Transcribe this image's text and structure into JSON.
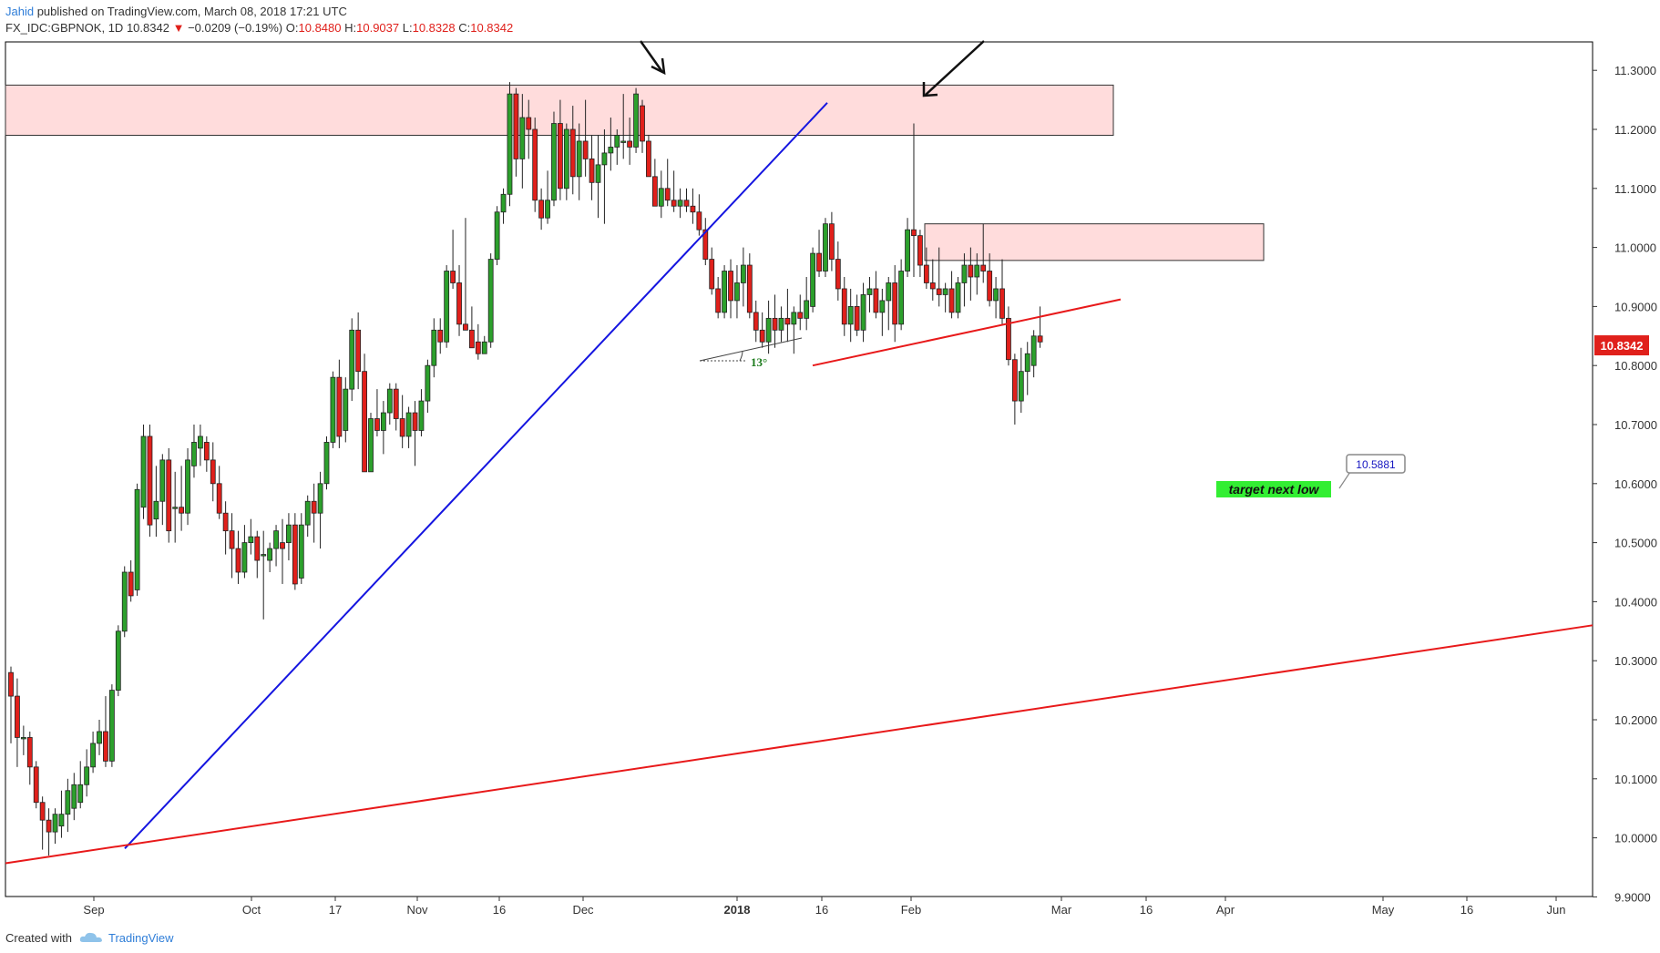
{
  "header": {
    "author": "Jahid",
    "published_text": "published on TradingView.com, March 08, 2018 17:21 UTC",
    "symbol": "FX_IDC:GBPNOK, 1D",
    "last": "10.8342",
    "change": "−0.0209 (−0.19%)",
    "o_label": "O:",
    "o_val": "10.8480",
    "h_label": "H:",
    "h_val": "10.9037",
    "l_label": "L:",
    "l_val": "10.8328",
    "c_label": "C:",
    "c_val": "10.8342"
  },
  "footer": {
    "created_with": "Created with",
    "brand": "TradingView"
  },
  "colors": {
    "up": "#2ca02c",
    "down": "#e0201b",
    "zone_fill": "#ffdcdc",
    "blue_trend": "#1515e0",
    "red_trend": "#e8191a",
    "target_bg": "#33ee33"
  },
  "annotations": {
    "angle_label": "13°",
    "target_text": "target next low",
    "target_price": "10.5881",
    "last_price_tag": "10.8342"
  },
  "chart_data": {
    "type": "candlestick",
    "symbol": "GBPNOK",
    "interval": "1D",
    "ylim": [
      9.9,
      11.33
    ],
    "y_ticks": [
      "11.3000",
      "11.2000",
      "11.1000",
      "11.0000",
      "10.9000",
      "10.8000",
      "10.7000",
      "10.6000",
      "10.5000",
      "10.4000",
      "10.3000",
      "10.2000",
      "10.1000",
      "10.0000",
      "9.9000"
    ],
    "x_ticks": [
      "Sep",
      "Oct",
      "17",
      "Nov",
      "16",
      "Dec",
      "2018",
      "16",
      "Feb",
      "Mar",
      "16",
      "Apr",
      "May",
      "16",
      "Jun"
    ],
    "candles": [
      [
        10.28,
        10.29,
        10.16,
        10.24
      ],
      [
        10.24,
        10.27,
        10.12,
        10.17
      ],
      [
        10.17,
        10.19,
        10.14,
        10.17
      ],
      [
        10.17,
        10.18,
        10.09,
        10.12
      ],
      [
        10.12,
        10.13,
        10.05,
        10.06
      ],
      [
        10.06,
        10.07,
        9.98,
        10.03
      ],
      [
        10.03,
        10.05,
        9.97,
        10.01
      ],
      [
        10.01,
        10.05,
        9.99,
        10.04
      ],
      [
        10.02,
        10.08,
        10.0,
        10.04
      ],
      [
        10.04,
        10.1,
        10.01,
        10.08
      ],
      [
        10.05,
        10.11,
        10.03,
        10.09
      ],
      [
        10.06,
        10.13,
        10.05,
        10.09
      ],
      [
        10.09,
        10.15,
        10.07,
        10.12
      ],
      [
        10.12,
        10.18,
        10.11,
        10.16
      ],
      [
        10.16,
        10.2,
        10.14,
        10.18
      ],
      [
        10.18,
        10.24,
        10.12,
        10.13
      ],
      [
        10.13,
        10.26,
        10.12,
        10.25
      ],
      [
        10.25,
        10.36,
        10.24,
        10.35
      ],
      [
        10.35,
        10.46,
        10.34,
        10.45
      ],
      [
        10.45,
        10.47,
        10.4,
        10.41
      ],
      [
        10.42,
        10.6,
        10.41,
        10.59
      ],
      [
        10.56,
        10.7,
        10.54,
        10.68
      ],
      [
        10.68,
        10.7,
        10.51,
        10.53
      ],
      [
        10.54,
        10.63,
        10.51,
        10.57
      ],
      [
        10.57,
        10.65,
        10.53,
        10.64
      ],
      [
        10.64,
        10.66,
        10.5,
        10.52
      ],
      [
        10.56,
        10.62,
        10.5,
        10.56
      ],
      [
        10.56,
        10.63,
        10.52,
        10.55
      ],
      [
        10.55,
        10.66,
        10.53,
        10.64
      ],
      [
        10.63,
        10.7,
        10.61,
        10.67
      ],
      [
        10.66,
        10.7,
        10.63,
        10.68
      ],
      [
        10.67,
        10.68,
        10.62,
        10.64
      ],
      [
        10.64,
        10.67,
        10.57,
        10.6
      ],
      [
        10.6,
        10.63,
        10.54,
        10.55
      ],
      [
        10.55,
        10.57,
        10.48,
        10.52
      ],
      [
        10.52,
        10.55,
        10.44,
        10.49
      ],
      [
        10.49,
        10.52,
        10.43,
        10.45
      ],
      [
        10.45,
        10.53,
        10.44,
        10.5
      ],
      [
        10.5,
        10.54,
        10.48,
        10.51
      ],
      [
        10.51,
        10.52,
        10.44,
        10.47
      ],
      [
        10.48,
        10.52,
        10.37,
        10.48
      ],
      [
        10.47,
        10.5,
        10.45,
        10.49
      ],
      [
        10.49,
        10.53,
        10.46,
        10.52
      ],
      [
        10.5,
        10.54,
        10.43,
        10.49
      ],
      [
        10.5,
        10.55,
        10.47,
        10.53
      ],
      [
        10.53,
        10.55,
        10.42,
        10.43
      ],
      [
        10.44,
        10.55,
        10.43,
        10.53
      ],
      [
        10.53,
        10.58,
        10.51,
        10.57
      ],
      [
        10.57,
        10.6,
        10.5,
        10.55
      ],
      [
        10.55,
        10.62,
        10.49,
        10.6
      ],
      [
        10.6,
        10.68,
        10.59,
        10.67
      ],
      [
        10.67,
        10.79,
        10.66,
        10.78
      ],
      [
        10.78,
        10.81,
        10.66,
        10.68
      ],
      [
        10.69,
        10.78,
        10.67,
        10.76
      ],
      [
        10.76,
        10.88,
        10.74,
        10.86
      ],
      [
        10.86,
        10.89,
        10.76,
        10.79
      ],
      [
        10.79,
        10.82,
        10.62,
        10.62
      ],
      [
        10.62,
        10.72,
        10.62,
        10.71
      ],
      [
        10.71,
        10.76,
        10.68,
        10.69
      ],
      [
        10.69,
        10.74,
        10.65,
        10.72
      ],
      [
        10.72,
        10.77,
        10.7,
        10.76
      ],
      [
        10.76,
        10.77,
        10.69,
        10.71
      ],
      [
        10.71,
        10.75,
        10.66,
        10.68
      ],
      [
        10.68,
        10.73,
        10.66,
        10.72
      ],
      [
        10.72,
        10.74,
        10.63,
        10.69
      ],
      [
        10.69,
        10.76,
        10.68,
        10.74
      ],
      [
        10.74,
        10.81,
        10.72,
        10.8
      ],
      [
        10.8,
        10.88,
        10.78,
        10.86
      ],
      [
        10.86,
        10.88,
        10.82,
        10.84
      ],
      [
        10.84,
        10.97,
        10.83,
        10.96
      ],
      [
        10.96,
        11.03,
        10.93,
        10.94
      ],
      [
        10.94,
        10.97,
        10.85,
        10.87
      ],
      [
        10.87,
        11.05,
        10.86,
        10.86
      ],
      [
        10.86,
        10.9,
        10.83,
        10.83
      ],
      [
        10.84,
        10.87,
        10.81,
        10.82
      ],
      [
        10.82,
        10.85,
        10.82,
        10.84
      ],
      [
        10.84,
        10.99,
        10.83,
        10.98
      ],
      [
        10.98,
        11.07,
        10.97,
        11.06
      ],
      [
        11.06,
        11.1,
        11.04,
        11.09
      ],
      [
        11.09,
        11.28,
        11.07,
        11.26
      ],
      [
        11.26,
        11.27,
        11.12,
        11.15
      ],
      [
        11.15,
        11.26,
        11.1,
        11.22
      ],
      [
        11.22,
        11.25,
        11.15,
        11.2
      ],
      [
        11.2,
        11.22,
        11.06,
        11.08
      ],
      [
        11.08,
        11.1,
        11.03,
        11.05
      ],
      [
        11.05,
        11.13,
        11.04,
        11.08
      ],
      [
        11.08,
        11.23,
        11.07,
        11.21
      ],
      [
        11.21,
        11.25,
        11.08,
        11.1
      ],
      [
        11.1,
        11.21,
        11.08,
        11.2
      ],
      [
        11.2,
        11.24,
        11.09,
        11.12
      ],
      [
        11.12,
        11.21,
        11.08,
        11.18
      ],
      [
        11.18,
        11.25,
        11.12,
        11.15
      ],
      [
        11.15,
        11.19,
        11.08,
        11.11
      ],
      [
        11.11,
        11.19,
        11.05,
        11.14
      ],
      [
        11.14,
        11.2,
        11.04,
        11.16
      ],
      [
        11.16,
        11.22,
        11.13,
        11.17
      ],
      [
        11.17,
        11.2,
        11.14,
        11.19
      ],
      [
        11.18,
        11.26,
        11.15,
        11.18
      ],
      [
        11.18,
        11.22,
        11.14,
        11.17
      ],
      [
        11.17,
        11.27,
        11.16,
        11.26
      ],
      [
        11.24,
        11.25,
        11.16,
        11.18
      ],
      [
        11.18,
        11.19,
        11.12,
        11.12
      ],
      [
        11.12,
        11.15,
        11.07,
        11.07
      ],
      [
        11.07,
        11.13,
        11.05,
        11.1
      ],
      [
        11.1,
        11.15,
        11.07,
        11.08
      ],
      [
        11.08,
        11.13,
        11.06,
        11.07
      ],
      [
        11.07,
        11.1,
        11.05,
        11.08
      ],
      [
        11.08,
        11.1,
        11.06,
        11.07
      ],
      [
        11.07,
        11.1,
        11.04,
        11.06
      ],
      [
        11.06,
        11.09,
        11.02,
        11.03
      ],
      [
        11.03,
        11.05,
        10.97,
        10.98
      ],
      [
        10.98,
        11.0,
        10.92,
        10.93
      ],
      [
        10.93,
        10.95,
        10.88,
        10.89
      ],
      [
        10.89,
        10.97,
        10.88,
        10.96
      ],
      [
        10.96,
        10.98,
        10.88,
        10.91
      ],
      [
        10.91,
        10.97,
        10.88,
        10.94
      ],
      [
        10.94,
        11.0,
        10.9,
        10.97
      ],
      [
        10.97,
        10.99,
        10.88,
        10.89
      ],
      [
        10.89,
        10.91,
        10.84,
        10.86
      ],
      [
        10.86,
        10.89,
        10.83,
        10.84
      ],
      [
        10.84,
        10.91,
        10.82,
        10.88
      ],
      [
        10.88,
        10.92,
        10.83,
        10.86
      ],
      [
        10.86,
        10.9,
        10.84,
        10.88
      ],
      [
        10.88,
        10.93,
        10.84,
        10.87
      ],
      [
        10.87,
        10.9,
        10.82,
        10.89
      ],
      [
        10.89,
        10.92,
        10.86,
        10.88
      ],
      [
        10.88,
        10.95,
        10.86,
        10.91
      ],
      [
        10.9,
        11.0,
        10.89,
        10.99
      ],
      [
        10.99,
        11.03,
        10.95,
        10.96
      ],
      [
        10.96,
        11.05,
        10.95,
        11.04
      ],
      [
        11.04,
        11.06,
        10.96,
        10.98
      ],
      [
        10.98,
        11.01,
        10.91,
        10.93
      ],
      [
        10.93,
        10.95,
        10.85,
        10.87
      ],
      [
        10.87,
        10.93,
        10.84,
        10.9
      ],
      [
        10.9,
        10.92,
        10.85,
        10.86
      ],
      [
        10.86,
        10.94,
        10.84,
        10.92
      ],
      [
        10.92,
        10.95,
        10.89,
        10.93
      ],
      [
        10.93,
        10.96,
        10.88,
        10.89
      ],
      [
        10.89,
        10.93,
        10.85,
        10.91
      ],
      [
        10.91,
        10.95,
        10.86,
        10.94
      ],
      [
        10.94,
        10.97,
        10.84,
        10.87
      ],
      [
        10.87,
        10.98,
        10.86,
        10.96
      ],
      [
        10.96,
        11.05,
        10.95,
        11.03
      ],
      [
        11.03,
        11.21,
        10.95,
        11.02
      ],
      [
        11.02,
        11.03,
        10.95,
        10.97
      ],
      [
        10.97,
        11.0,
        10.93,
        10.94
      ],
      [
        10.94,
        10.98,
        10.91,
        10.93
      ],
      [
        10.93,
        11.0,
        10.9,
        10.92
      ],
      [
        10.92,
        10.94,
        10.89,
        10.93
      ],
      [
        10.93,
        10.96,
        10.88,
        10.89
      ],
      [
        10.89,
        10.95,
        10.88,
        10.94
      ],
      [
        10.94,
        10.99,
        10.9,
        10.97
      ],
      [
        10.97,
        11.0,
        10.91,
        10.95
      ],
      [
        10.95,
        10.99,
        10.92,
        10.97
      ],
      [
        10.97,
        11.04,
        10.94,
        10.96
      ],
      [
        10.96,
        10.99,
        10.9,
        10.91
      ],
      [
        10.91,
        10.95,
        10.88,
        10.93
      ],
      [
        10.93,
        10.98,
        10.87,
        10.88
      ],
      [
        10.88,
        10.9,
        10.8,
        10.81
      ],
      [
        10.81,
        10.82,
        10.7,
        10.74
      ],
      [
        10.74,
        10.83,
        10.72,
        10.79
      ],
      [
        10.79,
        10.84,
        10.75,
        10.82
      ],
      [
        10.8,
        10.86,
        10.78,
        10.85
      ],
      [
        10.85,
        10.9,
        10.83,
        10.84
      ]
    ],
    "zones": [
      {
        "name": "upper-resistance",
        "from": 11.19,
        "to": 11.275
      },
      {
        "name": "mid-resistance",
        "from": 10.978,
        "to": 11.04
      }
    ],
    "trendlines": [
      {
        "name": "blue-support",
        "from": [
          9.982
        ],
        "to": [
          11.245
        ]
      },
      {
        "name": "red-neckline",
        "from": [
          10.8
        ],
        "to": [
          10.912
        ]
      },
      {
        "name": "red-long-term",
        "from": [
          9.957
        ],
        "to": [
          10.36
        ]
      }
    ]
  }
}
